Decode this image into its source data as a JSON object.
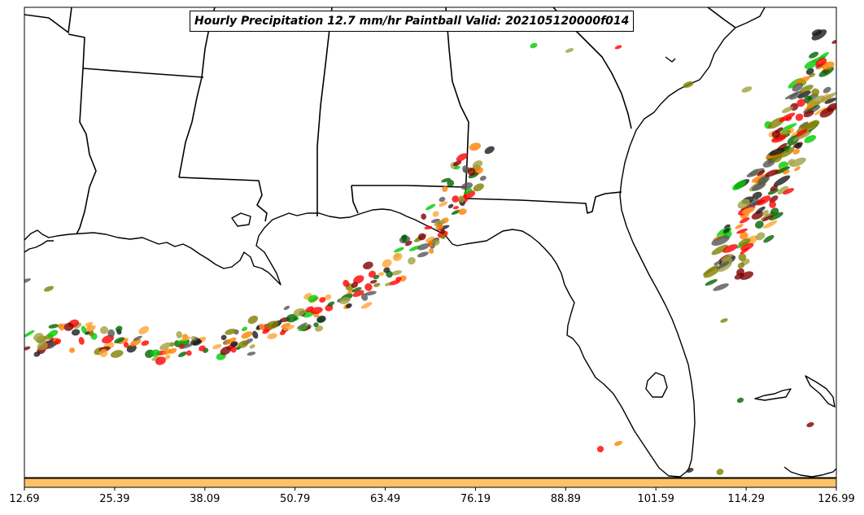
{
  "map": {
    "title": "Hourly Precipitation 12.7 mm/hr Paintball Valid: 202105120000f014"
  },
  "colorbar": {
    "color": "#ffc266",
    "tick_labels": [
      "12.69",
      "25.39",
      "38.09",
      "50.79",
      "63.49",
      "76.19",
      "88.89",
      "101.59",
      "114.29",
      "126.99"
    ]
  },
  "ensemble_colors": [
    "#ff0000",
    "#ff7f00",
    "#00cc00",
    "#006400",
    "#7f0000",
    "#808000",
    "#ffa533",
    "#a0a040",
    "#1a1a1a",
    "#555555"
  ]
}
